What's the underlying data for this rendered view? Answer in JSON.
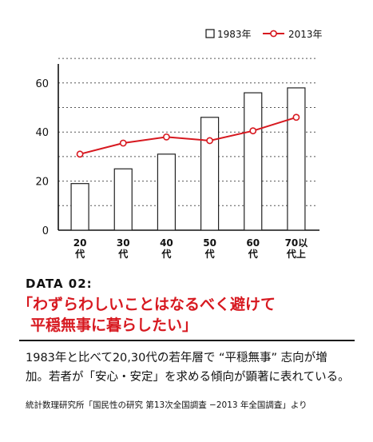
{
  "chart_data": {
    "type": "bar+line",
    "categories": [
      "20\n代",
      "30\n代",
      "40\n代",
      "50\n代",
      "60\n代",
      "70以\n代上"
    ],
    "series": [
      {
        "name": "1983年",
        "type": "bar",
        "values": [
          19,
          25,
          31,
          46,
          56,
          58
        ]
      },
      {
        "name": "2013年",
        "type": "line",
        "values": [
          31,
          35.5,
          38,
          36.5,
          40.5,
          46
        ]
      }
    ],
    "y_ticks": [
      "0",
      "20",
      "40",
      "60"
    ],
    "ylim": [
      0,
      70
    ],
    "grid": true,
    "legend_position": "top-right",
    "colors": {
      "bar_fill": "#ffffff",
      "bar_stroke": "#222222",
      "line": "#d71920",
      "grid": "#555555"
    }
  },
  "text": {
    "data_label": "DATA 02:",
    "headline_line1": "「わずらわしいことはなるべく避けて",
    "headline_line2": "平穏無事に暮らしたい」",
    "body_line1": "1983年と比べて20,30代の若年層で “平穏無事” 志向が増",
    "body_line2": "加。若者が「安心・安定」を求める傾向が顕著に表れている。",
    "source": "統計数理研究所「国民性の研究 第13次全国調査 −2013 年全国調査」より"
  }
}
